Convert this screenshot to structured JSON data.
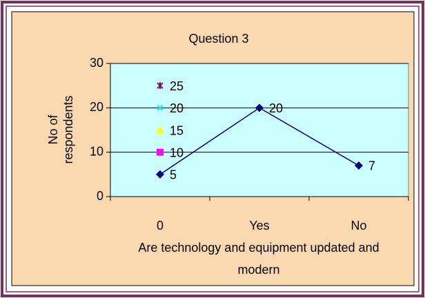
{
  "chart_data": {
    "type": "line",
    "title": "Question 3",
    "y_label": [
      "No of",
      "respondents"
    ],
    "x_label": [
      "Are technology and equipment updated and",
      "modern"
    ],
    "categories": [
      "0",
      "Yes",
      "No"
    ],
    "series": [
      {
        "color": "#000080",
        "marker": "diamond",
        "values": [
          5,
          20,
          7
        ]
      },
      {
        "color": "#ff00ff",
        "marker": "square",
        "values": [
          10,
          null,
          null
        ]
      },
      {
        "color": "#ffff00",
        "marker": "triangle",
        "values": [
          15,
          null,
          null
        ]
      },
      {
        "color": "#00ffff",
        "marker": "x",
        "values": [
          20,
          null,
          null
        ]
      },
      {
        "color": "#800080",
        "marker": "asterisk",
        "values": [
          25,
          null,
          null
        ]
      }
    ],
    "ylim": [
      0,
      30
    ],
    "yticks": [
      0,
      10,
      20,
      30
    ],
    "grid": true
  }
}
